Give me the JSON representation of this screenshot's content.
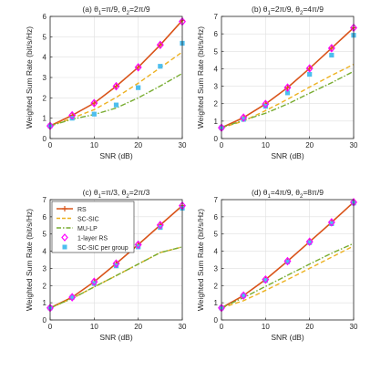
{
  "figure": {
    "legend": [
      {
        "name": "RS",
        "color": "#d95319",
        "marker": "plus-line"
      },
      {
        "name": "SC-SIC",
        "color": "#edb120",
        "marker": "dashed"
      },
      {
        "name": "MU-LP",
        "color": "#77ac30",
        "marker": "dashdot"
      },
      {
        "name": "1-layer RS",
        "color": "#ff00ff",
        "marker": "diamond"
      },
      {
        "name": "SC-SIC per group",
        "color": "#4dbeee",
        "marker": "square"
      }
    ]
  },
  "chart_data": [
    {
      "type": "line",
      "title": "(a) θ1=π/9, θ2=2π/9",
      "xlabel": "SNR (dB)",
      "ylabel": "Weighted Sum Rate (bit/s/Hz)",
      "xlim": [
        0,
        30
      ],
      "ylim": [
        0,
        6
      ],
      "xticks": [
        0,
        10,
        20,
        30
      ],
      "yticks": [
        0,
        1,
        2,
        3,
        4,
        5,
        6
      ],
      "grid": true,
      "x": [
        0,
        5,
        10,
        15,
        20,
        25,
        30
      ],
      "series": [
        {
          "name": "RS",
          "values": [
            0.62,
            1.14,
            1.74,
            2.57,
            3.5,
            4.6,
            5.8
          ]
        },
        {
          "name": "SC-SIC",
          "values": [
            0.62,
            1.0,
            1.42,
            2.02,
            2.72,
            3.48,
            4.25
          ]
        },
        {
          "name": "MU-LP",
          "values": [
            0.62,
            0.95,
            1.18,
            1.5,
            2.0,
            2.58,
            3.2
          ]
        },
        {
          "name": "1-layer RS",
          "values": [
            0.62,
            1.14,
            1.74,
            2.57,
            3.5,
            4.6,
            5.75
          ]
        },
        {
          "name": "SC-SIC per group",
          "values": [
            0.62,
            1.0,
            1.2,
            1.65,
            2.5,
            3.55,
            4.68
          ]
        }
      ]
    },
    {
      "type": "line",
      "title": "(b) θ1=2π/9, θ2=4π/9",
      "xlabel": "SNR (dB)",
      "ylabel": "Weighted Sum Rate (bit/s/Hz)",
      "xlim": [
        0,
        30
      ],
      "ylim": [
        0,
        7
      ],
      "xticks": [
        0,
        10,
        20,
        30
      ],
      "yticks": [
        0,
        1,
        2,
        3,
        4,
        5,
        6,
        7
      ],
      "grid": true,
      "x": [
        0,
        5,
        10,
        15,
        20,
        25,
        30
      ],
      "series": [
        {
          "name": "RS",
          "values": [
            0.62,
            1.2,
            1.98,
            2.92,
            4.02,
            5.18,
            6.35
          ]
        },
        {
          "name": "SC-SIC",
          "values": [
            0.62,
            1.0,
            1.6,
            2.25,
            2.95,
            3.62,
            4.25
          ]
        },
        {
          "name": "MU-LP",
          "values": [
            0.62,
            1.05,
            1.45,
            1.98,
            2.6,
            3.2,
            3.85
          ]
        },
        {
          "name": "1-layer RS",
          "values": [
            0.62,
            1.2,
            1.98,
            2.92,
            4.02,
            5.18,
            6.35
          ]
        },
        {
          "name": "SC-SIC per group",
          "values": [
            0.62,
            1.1,
            1.85,
            2.62,
            3.68,
            4.78,
            5.92
          ]
        }
      ]
    },
    {
      "type": "line",
      "title": "(c) θ1=π/3, θ2=2π/3",
      "xlabel": "SNR (dB)",
      "ylabel": "Weighted Sum Rate (bit/s/Hz)",
      "xlim": [
        0,
        30
      ],
      "ylim": [
        0,
        7
      ],
      "xticks": [
        0,
        10,
        20,
        30
      ],
      "yticks": [
        0,
        1,
        2,
        3,
        4,
        5,
        6,
        7
      ],
      "grid": true,
      "legend_position": "top-left",
      "x": [
        0,
        5,
        10,
        15,
        20,
        25,
        30
      ],
      "series": [
        {
          "name": "RS",
          "values": [
            0.7,
            1.32,
            2.22,
            3.28,
            4.38,
            5.52,
            6.65
          ]
        },
        {
          "name": "SC-SIC",
          "values": [
            0.7,
            1.25,
            1.92,
            2.58,
            3.25,
            3.92,
            4.25
          ]
        },
        {
          "name": "MU-LP",
          "values": [
            0.7,
            1.25,
            1.92,
            2.58,
            3.25,
            3.92,
            4.25
          ]
        },
        {
          "name": "1-layer RS",
          "values": [
            0.7,
            1.32,
            2.22,
            3.28,
            4.38,
            5.52,
            6.65
          ]
        },
        {
          "name": "SC-SIC per group",
          "values": [
            0.7,
            1.32,
            2.12,
            3.15,
            4.25,
            5.38,
            6.5
          ]
        }
      ]
    },
    {
      "type": "line",
      "title": "(d) θ1=4π/9, θ2=8π/9",
      "xlabel": "SNR (dB)",
      "ylabel": "Weighted Sum Rate (bit/s/Hz)",
      "xlim": [
        0,
        30
      ],
      "ylim": [
        0,
        7
      ],
      "xticks": [
        0,
        10,
        20,
        30
      ],
      "yticks": [
        0,
        1,
        2,
        3,
        4,
        5,
        6,
        7
      ],
      "grid": true,
      "x": [
        0,
        5,
        10,
        15,
        20,
        25,
        30
      ],
      "series": [
        {
          "name": "RS",
          "values": [
            0.7,
            1.42,
            2.35,
            3.42,
            4.55,
            5.68,
            6.85
          ]
        },
        {
          "name": "SC-SIC",
          "values": [
            0.7,
            1.12,
            1.72,
            2.35,
            3.0,
            3.65,
            4.3
          ]
        },
        {
          "name": "MU-LP",
          "values": [
            0.7,
            1.3,
            1.95,
            2.6,
            3.25,
            3.88,
            4.45
          ]
        },
        {
          "name": "1-layer RS",
          "values": [
            0.7,
            1.42,
            2.35,
            3.42,
            4.55,
            5.68,
            6.85
          ]
        },
        {
          "name": "SC-SIC per group",
          "values": [
            0.7,
            1.42,
            2.3,
            3.38,
            4.5,
            5.6,
            6.8
          ]
        }
      ]
    }
  ]
}
